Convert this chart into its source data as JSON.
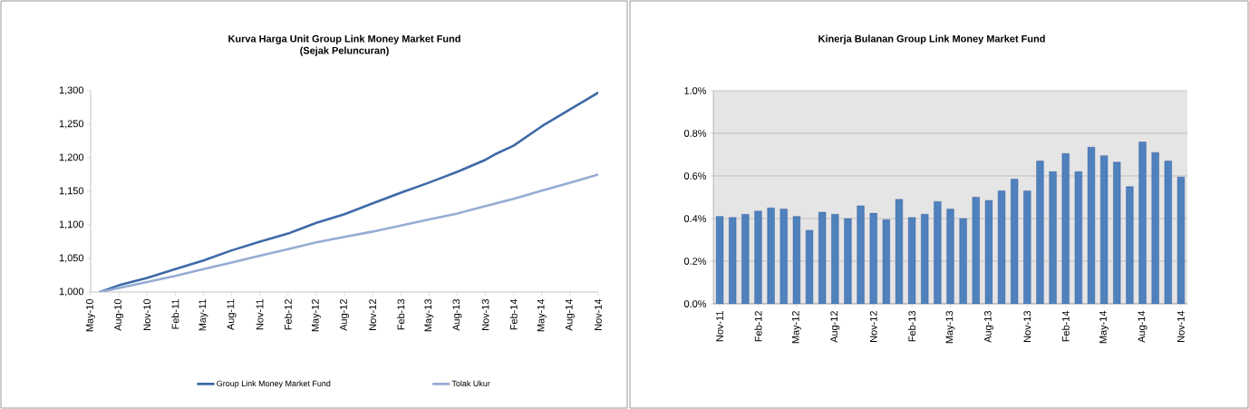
{
  "chart_data": [
    {
      "type": "line",
      "title": "Kurva Harga Unit Group Link Money Market Fund",
      "subtitle": "(Sejak Peluncuran)",
      "xlim": [
        "2010-05",
        "2014-11"
      ],
      "xticks": [
        {
          "value": "2010-05",
          "label": "May-10"
        },
        {
          "value": "2010-08",
          "label": "Aug-10"
        },
        {
          "value": "2010-11",
          "label": "Nov-10"
        },
        {
          "value": "2011-02",
          "label": "Feb-11"
        },
        {
          "value": "2011-05",
          "label": "May-11"
        },
        {
          "value": "2011-08",
          "label": "Aug-11"
        },
        {
          "value": "2011-11",
          "label": "Nov-11"
        },
        {
          "value": "2012-02",
          "label": "Feb-12"
        },
        {
          "value": "2012-05",
          "label": "May-12"
        },
        {
          "value": "2012-08",
          "label": "Aug-12"
        },
        {
          "value": "2012-11",
          "label": "Nov-12"
        },
        {
          "value": "2013-02",
          "label": "Feb-13"
        },
        {
          "value": "2013-05",
          "label": "May-13"
        },
        {
          "value": "2013-08",
          "label": "Aug-13"
        },
        {
          "value": "2013-11",
          "label": "Nov-13"
        },
        {
          "value": "2014-02",
          "label": "Feb-14"
        },
        {
          "value": "2014-05",
          "label": "May-14"
        },
        {
          "value": "2014-08",
          "label": "Aug-14"
        },
        {
          "value": "2014-11",
          "label": "Nov-14"
        }
      ],
      "ylim": [
        1000,
        1300
      ],
      "yticks": [
        {
          "value": 1000,
          "label": "1,000"
        },
        {
          "value": 1050,
          "label": "1,050"
        },
        {
          "value": 1100,
          "label": "1,100"
        },
        {
          "value": 1150,
          "label": "1,150"
        },
        {
          "value": 1200,
          "label": "1,200"
        },
        {
          "value": 1250,
          "label": "1,250"
        },
        {
          "value": 1300,
          "label": "1,300"
        }
      ],
      "grid": false,
      "legend": "bottom",
      "marker": "none",
      "line_style": "solid",
      "series": [
        {
          "name": "Group Link Money Market Fund",
          "color": "#3e6aa7",
          "x": [
            "2010-06",
            "2010-08",
            "2010-11",
            "2011-02",
            "2011-05",
            "2011-08",
            "2011-11",
            "2012-02",
            "2012-05",
            "2012-08",
            "2012-11",
            "2013-02",
            "2013-05",
            "2013-08",
            "2013-11",
            "2013-12",
            "2014-02",
            "2014-05",
            "2014-08",
            "2014-11"
          ],
          "values": [
            1000,
            1010,
            1021,
            1034,
            1047,
            1062,
            1075,
            1087,
            1103,
            1116,
            1132,
            1148,
            1163,
            1179,
            1197,
            1205,
            1218,
            1247,
            1272,
            1297
          ]
        },
        {
          "name": "Tolak Ukur",
          "color": "#95acd4",
          "x": [
            "2010-06",
            "2010-11",
            "2011-02",
            "2011-05",
            "2011-08",
            "2011-11",
            "2012-02",
            "2012-05",
            "2012-08",
            "2012-11",
            "2013-02",
            "2013-05",
            "2013-08",
            "2013-11",
            "2014-02",
            "2014-05",
            "2014-08",
            "2014-11"
          ],
          "values": [
            1000,
            1015,
            1024,
            1034,
            1044,
            1054,
            1064,
            1074,
            1082,
            1090,
            1099,
            1108,
            1117,
            1128,
            1139,
            1151,
            1163,
            1175
          ]
        }
      ]
    },
    {
      "type": "bar",
      "title": "Kinerja Bulanan Group Link Money Market Fund",
      "categories": [
        "Nov-11",
        null,
        null,
        "Feb-12",
        null,
        null,
        "May-12",
        null,
        null,
        "Aug-12",
        null,
        null,
        "Nov-12",
        null,
        null,
        "Feb-13",
        null,
        null,
        "May-13",
        null,
        null,
        "Aug-13",
        null,
        null,
        "Nov-13",
        null,
        null,
        "Feb-14",
        null,
        null,
        "May-14",
        null,
        null,
        "Aug-14",
        null,
        null,
        "Nov-14"
      ],
      "values": [
        0.41,
        0.405,
        0.42,
        0.435,
        0.45,
        0.445,
        0.41,
        0.345,
        0.43,
        0.42,
        0.4,
        0.46,
        0.425,
        0.395,
        0.49,
        0.405,
        0.42,
        0.48,
        0.445,
        0.4,
        0.5,
        0.485,
        0.53,
        0.585,
        0.53,
        0.67,
        0.62,
        0.705,
        0.62,
        0.735,
        0.695,
        0.665,
        0.55,
        0.76,
        0.71,
        0.67,
        0.595
      ],
      "color": "#4f81bd",
      "ylim": [
        0,
        1.0
      ],
      "yticks": [
        {
          "value": 0,
          "label": "0.0%"
        },
        {
          "value": 0.2,
          "label": "0.2%"
        },
        {
          "value": 0.4,
          "label": "0.4%"
        },
        {
          "value": 0.6,
          "label": "0.6%"
        },
        {
          "value": 0.8,
          "label": "0.8%"
        },
        {
          "value": 1.0,
          "label": "1.0%"
        }
      ],
      "grid": "y",
      "legend": false
    }
  ]
}
